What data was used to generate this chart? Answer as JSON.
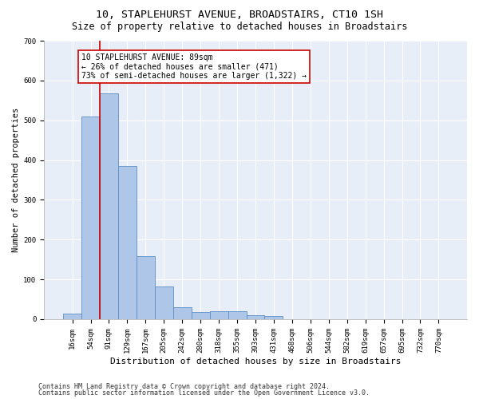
{
  "title": "10, STAPLEHURST AVENUE, BROADSTAIRS, CT10 1SH",
  "subtitle": "Size of property relative to detached houses in Broadstairs",
  "xlabel": "Distribution of detached houses by size in Broadstairs",
  "ylabel": "Number of detached properties",
  "bar_labels": [
    "16sqm",
    "54sqm",
    "91sqm",
    "129sqm",
    "167sqm",
    "205sqm",
    "242sqm",
    "280sqm",
    "318sqm",
    "355sqm",
    "393sqm",
    "431sqm",
    "468sqm",
    "506sqm",
    "544sqm",
    "582sqm",
    "619sqm",
    "657sqm",
    "695sqm",
    "732sqm",
    "770sqm"
  ],
  "bar_values": [
    13,
    510,
    568,
    385,
    158,
    82,
    30,
    18,
    20,
    20,
    10,
    8,
    0,
    0,
    0,
    0,
    0,
    0,
    0,
    0,
    0
  ],
  "bar_color": "#aec6e8",
  "bar_edge_color": "#5b8ec4",
  "bar_width": 1.0,
  "vline_color": "#cc0000",
  "ylim": [
    0,
    700
  ],
  "yticks": [
    0,
    100,
    200,
    300,
    400,
    500,
    600,
    700
  ],
  "annotation_text": "10 STAPLEHURST AVENUE: 89sqm\n← 26% of detached houses are smaller (471)\n73% of semi-detached houses are larger (1,322) →",
  "annotation_box_color": "#ffffff",
  "annotation_box_edge": "#cc0000",
  "footer_line1": "Contains HM Land Registry data © Crown copyright and database right 2024.",
  "footer_line2": "Contains public sector information licensed under the Open Government Licence v3.0.",
  "background_color": "#e8eef8",
  "grid_color": "#ffffff",
  "title_fontsize": 9.5,
  "subtitle_fontsize": 8.5,
  "xlabel_fontsize": 8,
  "ylabel_fontsize": 7.5,
  "tick_fontsize": 6.5,
  "annot_fontsize": 7,
  "footer_fontsize": 6
}
